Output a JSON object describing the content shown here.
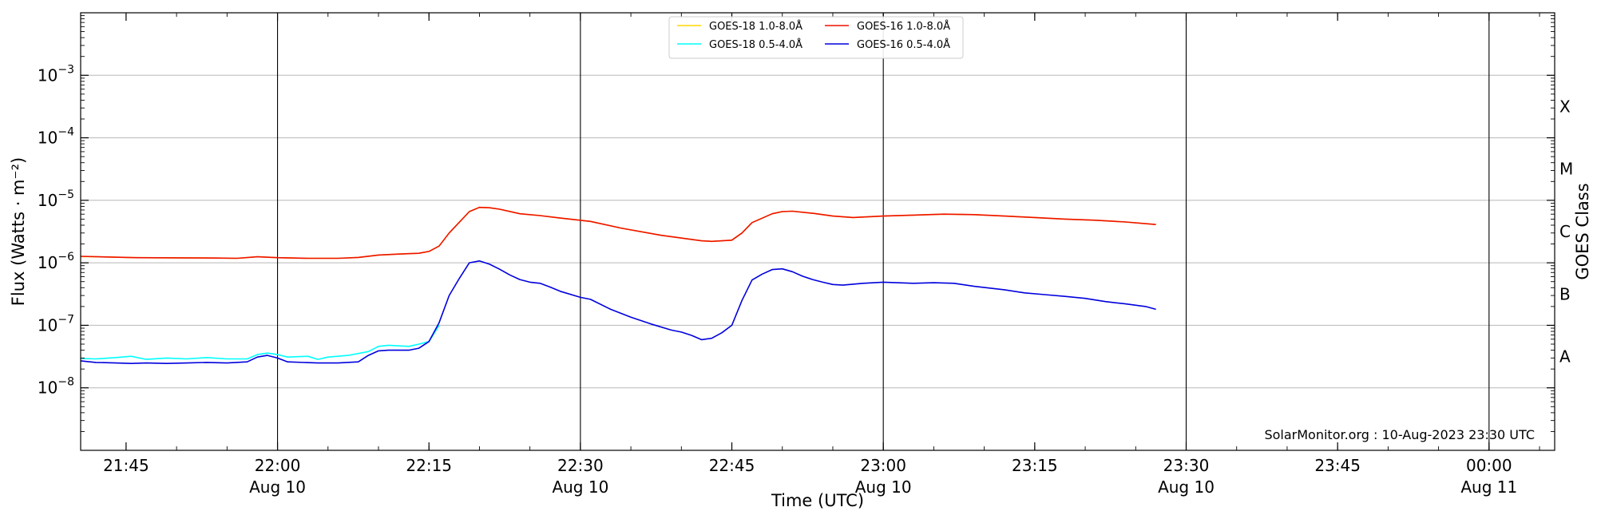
{
  "chart_data": {
    "type": "line",
    "xlabel": "Time (UTC)",
    "ylabel": "Flux (Watts · m⁻²)",
    "y2label": "GOES Class",
    "y_scale": "log",
    "ylim": [
      1e-09,
      0.01
    ],
    "xlim": [
      "2023-08-10T21:40:30",
      "2023-08-11T00:06:30"
    ],
    "grid": "horizontal at decades, vertical at half-hours",
    "legend_placement": "top-center",
    "credit": "SolarMonitor.org : 10-Aug-2023 23:30 UTC",
    "y_ticks": [
      {
        "value": 1e-08,
        "base": "10",
        "exp": "−8"
      },
      {
        "value": 1e-07,
        "base": "10",
        "exp": "−7"
      },
      {
        "value": 1e-06,
        "base": "10",
        "exp": "−6"
      },
      {
        "value": 1e-05,
        "base": "10",
        "exp": "−5"
      },
      {
        "value": 0.0001,
        "base": "10",
        "exp": "−4"
      },
      {
        "value": 0.001,
        "base": "10",
        "exp": "−3"
      }
    ],
    "x_ticks": [
      {
        "time": "2023-08-10T21:45:00",
        "label": "21:45",
        "sub": "",
        "major": false
      },
      {
        "time": "2023-08-10T22:00:00",
        "label": "22:00",
        "sub": "Aug 10",
        "major": true
      },
      {
        "time": "2023-08-10T22:15:00",
        "label": "22:15",
        "sub": "",
        "major": false
      },
      {
        "time": "2023-08-10T22:30:00",
        "label": "22:30",
        "sub": "Aug 10",
        "major": true
      },
      {
        "time": "2023-08-10T22:45:00",
        "label": "22:45",
        "sub": "",
        "major": false
      },
      {
        "time": "2023-08-10T23:00:00",
        "label": "23:00",
        "sub": "Aug 10",
        "major": true
      },
      {
        "time": "2023-08-10T23:15:00",
        "label": "23:15",
        "sub": "",
        "major": false
      },
      {
        "time": "2023-08-10T23:30:00",
        "label": "23:30",
        "sub": "Aug 10",
        "major": true
      },
      {
        "time": "2023-08-10T23:45:00",
        "label": "23:45",
        "sub": "",
        "major": false
      },
      {
        "time": "2023-08-11T00:00:00",
        "label": "00:00",
        "sub": "Aug 11",
        "major": true
      }
    ],
    "goes_classes": [
      {
        "label": "A",
        "value": 3.16e-08
      },
      {
        "label": "B",
        "value": 3.16e-07
      },
      {
        "label": "C",
        "value": 3.16e-06
      },
      {
        "label": "M",
        "value": 3.16e-05
      },
      {
        "label": "X",
        "value": 0.000316
      }
    ],
    "series": [
      {
        "name": "GOES-18 1.0-8.0Å",
        "color": "#ffd700",
        "points": [
          [
            "2023-08-10T21:40:30",
            1.26e-06
          ],
          [
            "2023-08-10T21:43:00",
            1.24e-06
          ],
          [
            "2023-08-10T21:46:00",
            1.21e-06
          ],
          [
            "2023-08-10T21:50:00",
            1.2e-06
          ],
          [
            "2023-08-10T21:54:00",
            1.19e-06
          ],
          [
            "2023-08-10T21:56:00",
            1.18e-06
          ],
          [
            "2023-08-10T21:58:00",
            1.25e-06
          ],
          [
            "2023-08-10T22:00:00",
            1.21e-06
          ],
          [
            "2023-08-10T22:03:00",
            1.18e-06
          ],
          [
            "2023-08-10T22:06:00",
            1.18e-06
          ],
          [
            "2023-08-10T22:08:00",
            1.22e-06
          ],
          [
            "2023-08-10T22:10:00",
            1.33e-06
          ],
          [
            "2023-08-10T22:12:00",
            1.38e-06
          ],
          [
            "2023-08-10T22:14:00",
            1.42e-06
          ],
          [
            "2023-08-10T22:15:00",
            1.52e-06
          ],
          [
            "2023-08-10T22:16:00",
            1.85e-06
          ],
          [
            "2023-08-10T22:17:00",
            3e-06
          ],
          [
            "2023-08-10T22:19:00",
            6.6e-06
          ],
          [
            "2023-08-10T22:20:00",
            7.7e-06
          ],
          [
            "2023-08-10T22:21:00",
            7.6e-06
          ],
          [
            "2023-08-10T22:22:00",
            7.2e-06
          ],
          [
            "2023-08-10T22:24:00",
            6.1e-06
          ],
          [
            "2023-08-10T22:26:00",
            5.7e-06
          ],
          [
            "2023-08-10T22:28:00",
            5.2e-06
          ],
          [
            "2023-08-10T22:31:00",
            4.6e-06
          ],
          [
            "2023-08-10T22:34:00",
            3.6e-06
          ],
          [
            "2023-08-10T22:38:00",
            2.75e-06
          ],
          [
            "2023-08-10T22:42:00",
            2.25e-06
          ],
          [
            "2023-08-10T22:43:00",
            2.2e-06
          ],
          [
            "2023-08-10T22:45:00",
            2.3e-06
          ],
          [
            "2023-08-10T22:46:00",
            3e-06
          ],
          [
            "2023-08-10T22:47:00",
            4.4e-06
          ],
          [
            "2023-08-10T22:49:00",
            6.1e-06
          ],
          [
            "2023-08-10T22:50:00",
            6.6e-06
          ],
          [
            "2023-08-10T22:51:00",
            6.7e-06
          ],
          [
            "2023-08-10T22:53:00",
            6.2e-06
          ],
          [
            "2023-08-10T22:55:00",
            5.6e-06
          ],
          [
            "2023-08-10T22:57:00",
            5.3e-06
          ],
          [
            "2023-08-10T23:00:00",
            5.6e-06
          ],
          [
            "2023-08-10T23:03:00",
            5.8e-06
          ],
          [
            "2023-08-10T23:06:00",
            6e-06
          ],
          [
            "2023-08-10T23:09:00",
            5.9e-06
          ],
          [
            "2023-08-10T23:12:00",
            5.6e-06
          ],
          [
            "2023-08-10T23:15:00",
            5.3e-06
          ],
          [
            "2023-08-10T23:18:00",
            5e-06
          ],
          [
            "2023-08-10T23:21:00",
            4.8e-06
          ],
          [
            "2023-08-10T23:24:00",
            4.5e-06
          ],
          [
            "2023-08-10T23:27:00",
            4.1e-06
          ]
        ]
      },
      {
        "name": "GOES-16 1.0-8.0Å",
        "color": "#ee1100",
        "points": [
          [
            "2023-08-10T21:40:30",
            1.27e-06
          ],
          [
            "2023-08-10T21:43:00",
            1.24e-06
          ],
          [
            "2023-08-10T21:46:00",
            1.21e-06
          ],
          [
            "2023-08-10T21:50:00",
            1.2e-06
          ],
          [
            "2023-08-10T21:54:00",
            1.19e-06
          ],
          [
            "2023-08-10T21:56:00",
            1.18e-06
          ],
          [
            "2023-08-10T21:58:00",
            1.25e-06
          ],
          [
            "2023-08-10T22:00:00",
            1.21e-06
          ],
          [
            "2023-08-10T22:03:00",
            1.18e-06
          ],
          [
            "2023-08-10T22:06:00",
            1.18e-06
          ],
          [
            "2023-08-10T22:08:00",
            1.22e-06
          ],
          [
            "2023-08-10T22:10:00",
            1.33e-06
          ],
          [
            "2023-08-10T22:12:00",
            1.38e-06
          ],
          [
            "2023-08-10T22:14:00",
            1.42e-06
          ],
          [
            "2023-08-10T22:15:00",
            1.52e-06
          ],
          [
            "2023-08-10T22:16:00",
            1.85e-06
          ],
          [
            "2023-08-10T22:17:00",
            3e-06
          ],
          [
            "2023-08-10T22:19:00",
            6.6e-06
          ],
          [
            "2023-08-10T22:20:00",
            7.7e-06
          ],
          [
            "2023-08-10T22:21:00",
            7.6e-06
          ],
          [
            "2023-08-10T22:22:00",
            7.2e-06
          ],
          [
            "2023-08-10T22:24:00",
            6.1e-06
          ],
          [
            "2023-08-10T22:26:00",
            5.7e-06
          ],
          [
            "2023-08-10T22:28:00",
            5.2e-06
          ],
          [
            "2023-08-10T22:31:00",
            4.6e-06
          ],
          [
            "2023-08-10T22:34:00",
            3.6e-06
          ],
          [
            "2023-08-10T22:38:00",
            2.75e-06
          ],
          [
            "2023-08-10T22:42:00",
            2.25e-06
          ],
          [
            "2023-08-10T22:43:00",
            2.2e-06
          ],
          [
            "2023-08-10T22:45:00",
            2.3e-06
          ],
          [
            "2023-08-10T22:46:00",
            3e-06
          ],
          [
            "2023-08-10T22:47:00",
            4.4e-06
          ],
          [
            "2023-08-10T22:49:00",
            6.1e-06
          ],
          [
            "2023-08-10T22:50:00",
            6.6e-06
          ],
          [
            "2023-08-10T22:51:00",
            6.7e-06
          ],
          [
            "2023-08-10T22:53:00",
            6.2e-06
          ],
          [
            "2023-08-10T22:55:00",
            5.6e-06
          ],
          [
            "2023-08-10T22:57:00",
            5.3e-06
          ],
          [
            "2023-08-10T23:00:00",
            5.6e-06
          ],
          [
            "2023-08-10T23:03:00",
            5.8e-06
          ],
          [
            "2023-08-10T23:06:00",
            6e-06
          ],
          [
            "2023-08-10T23:09:00",
            5.9e-06
          ],
          [
            "2023-08-10T23:12:00",
            5.6e-06
          ],
          [
            "2023-08-10T23:15:00",
            5.3e-06
          ],
          [
            "2023-08-10T23:18:00",
            5e-06
          ],
          [
            "2023-08-10T23:21:00",
            4.8e-06
          ],
          [
            "2023-08-10T23:24:00",
            4.5e-06
          ],
          [
            "2023-08-10T23:27:00",
            4.1e-06
          ]
        ]
      },
      {
        "name": "GOES-18 0.5-4.0Å",
        "color": "#00ffff",
        "points": [
          [
            "2023-08-10T21:40:30",
            2.95e-08
          ],
          [
            "2023-08-10T21:42:00",
            2.9e-08
          ],
          [
            "2023-08-10T21:44:00",
            3.05e-08
          ],
          [
            "2023-08-10T21:45:30",
            3.2e-08
          ],
          [
            "2023-08-10T21:47:00",
            2.85e-08
          ],
          [
            "2023-08-10T21:49:00",
            3e-08
          ],
          [
            "2023-08-10T21:51:00",
            2.9e-08
          ],
          [
            "2023-08-10T21:53:00",
            3.05e-08
          ],
          [
            "2023-08-10T21:55:00",
            2.9e-08
          ],
          [
            "2023-08-10T21:57:00",
            2.9e-08
          ],
          [
            "2023-08-10T21:58:00",
            3.4e-08
          ],
          [
            "2023-08-10T21:59:00",
            3.6e-08
          ],
          [
            "2023-08-10T22:00:00",
            3.4e-08
          ],
          [
            "2023-08-10T22:01:00",
            3.1e-08
          ],
          [
            "2023-08-10T22:03:00",
            3.2e-08
          ],
          [
            "2023-08-10T22:04:00",
            2.85e-08
          ],
          [
            "2023-08-10T22:05:00",
            3.1e-08
          ],
          [
            "2023-08-10T22:07:00",
            3.3e-08
          ],
          [
            "2023-08-10T22:09:00",
            3.8e-08
          ],
          [
            "2023-08-10T22:10:00",
            4.6e-08
          ],
          [
            "2023-08-10T22:11:00",
            4.8e-08
          ],
          [
            "2023-08-10T22:13:00",
            4.6e-08
          ],
          [
            "2023-08-10T22:14:00",
            5e-08
          ],
          [
            "2023-08-10T22:15:00",
            5.5e-08
          ],
          [
            "2023-08-10T22:16:00",
            1e-07
          ]
        ]
      },
      {
        "name": "GOES-16 0.5-4.0Å",
        "color": "#0000dd",
        "points": [
          [
            "2023-08-10T21:40:30",
            2.7e-08
          ],
          [
            "2023-08-10T21:42:00",
            2.55e-08
          ],
          [
            "2023-08-10T21:44:00",
            2.5e-08
          ],
          [
            "2023-08-10T21:45:30",
            2.45e-08
          ],
          [
            "2023-08-10T21:47:00",
            2.5e-08
          ],
          [
            "2023-08-10T21:49:00",
            2.45e-08
          ],
          [
            "2023-08-10T21:51:00",
            2.5e-08
          ],
          [
            "2023-08-10T21:53:00",
            2.55e-08
          ],
          [
            "2023-08-10T21:55:00",
            2.5e-08
          ],
          [
            "2023-08-10T21:57:00",
            2.6e-08
          ],
          [
            "2023-08-10T21:58:00",
            3.1e-08
          ],
          [
            "2023-08-10T21:59:00",
            3.3e-08
          ],
          [
            "2023-08-10T22:00:00",
            3e-08
          ],
          [
            "2023-08-10T22:01:00",
            2.6e-08
          ],
          [
            "2023-08-10T22:04:00",
            2.5e-08
          ],
          [
            "2023-08-10T22:06:00",
            2.5e-08
          ],
          [
            "2023-08-10T22:08:00",
            2.6e-08
          ],
          [
            "2023-08-10T22:09:00",
            3.3e-08
          ],
          [
            "2023-08-10T22:10:00",
            3.9e-08
          ],
          [
            "2023-08-10T22:11:00",
            4e-08
          ],
          [
            "2023-08-10T22:13:00",
            4e-08
          ],
          [
            "2023-08-10T22:14:00",
            4.3e-08
          ],
          [
            "2023-08-10T22:15:00",
            5.5e-08
          ],
          [
            "2023-08-10T22:16:00",
            1.1e-07
          ],
          [
            "2023-08-10T22:17:00",
            3e-07
          ],
          [
            "2023-08-10T22:18:00",
            5.6e-07
          ],
          [
            "2023-08-10T22:19:00",
            1e-06
          ],
          [
            "2023-08-10T22:20:00",
            1.07e-06
          ],
          [
            "2023-08-10T22:21:00",
            9.5e-07
          ],
          [
            "2023-08-10T22:22:00",
            7.9e-07
          ],
          [
            "2023-08-10T22:23:00",
            6.4e-07
          ],
          [
            "2023-08-10T22:24:00",
            5.4e-07
          ],
          [
            "2023-08-10T22:25:00",
            4.9e-07
          ],
          [
            "2023-08-10T22:26:00",
            4.7e-07
          ],
          [
            "2023-08-10T22:27:00",
            4.1e-07
          ],
          [
            "2023-08-10T22:28:00",
            3.5e-07
          ],
          [
            "2023-08-10T22:30:00",
            2.8e-07
          ],
          [
            "2023-08-10T22:31:00",
            2.6e-07
          ],
          [
            "2023-08-10T22:33:00",
            1.8e-07
          ],
          [
            "2023-08-10T22:35:00",
            1.35e-07
          ],
          [
            "2023-08-10T22:37:00",
            1.05e-07
          ],
          [
            "2023-08-10T22:39:00",
            8.4e-08
          ],
          [
            "2023-08-10T22:40:00",
            7.8e-08
          ],
          [
            "2023-08-10T22:41:00",
            6.9e-08
          ],
          [
            "2023-08-10T22:42:00",
            5.9e-08
          ],
          [
            "2023-08-10T22:43:00",
            6.2e-08
          ],
          [
            "2023-08-10T22:44:00",
            7.6e-08
          ],
          [
            "2023-08-10T22:45:00",
            1e-07
          ],
          [
            "2023-08-10T22:46:00",
            2.5e-07
          ],
          [
            "2023-08-10T22:47:00",
            5.3e-07
          ],
          [
            "2023-08-10T22:48:00",
            6.6e-07
          ],
          [
            "2023-08-10T22:49:00",
            7.8e-07
          ],
          [
            "2023-08-10T22:50:00",
            8e-07
          ],
          [
            "2023-08-10T22:51:00",
            7.2e-07
          ],
          [
            "2023-08-10T22:52:00",
            6.1e-07
          ],
          [
            "2023-08-10T22:53:00",
            5.4e-07
          ],
          [
            "2023-08-10T22:54:00",
            4.9e-07
          ],
          [
            "2023-08-10T22:55:00",
            4.5e-07
          ],
          [
            "2023-08-10T22:56:00",
            4.4e-07
          ],
          [
            "2023-08-10T22:58:00",
            4.7e-07
          ],
          [
            "2023-08-10T23:00:00",
            4.9e-07
          ],
          [
            "2023-08-10T23:03:00",
            4.7e-07
          ],
          [
            "2023-08-10T23:05:00",
            4.8e-07
          ],
          [
            "2023-08-10T23:07:00",
            4.7e-07
          ],
          [
            "2023-08-10T23:09:00",
            4.2e-07
          ],
          [
            "2023-08-10T23:12:00",
            3.7e-07
          ],
          [
            "2023-08-10T23:14:00",
            3.3e-07
          ],
          [
            "2023-08-10T23:16:00",
            3.1e-07
          ],
          [
            "2023-08-10T23:18:00",
            2.9e-07
          ],
          [
            "2023-08-10T23:20:00",
            2.7e-07
          ],
          [
            "2023-08-10T23:22:00",
            2.4e-07
          ],
          [
            "2023-08-10T23:24:00",
            2.2e-07
          ],
          [
            "2023-08-10T23:26:00",
            2e-07
          ],
          [
            "2023-08-10T23:27:00",
            1.8e-07
          ]
        ]
      }
    ]
  }
}
